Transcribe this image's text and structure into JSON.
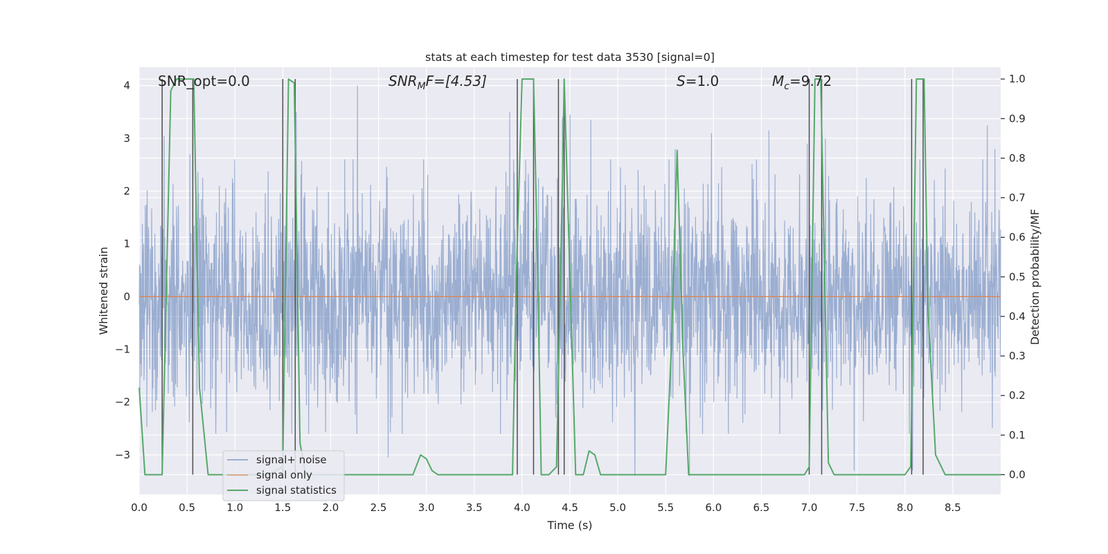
{
  "chart_data": {
    "type": "line",
    "title": "stats at each timestep for test data 3530 [signal=0]",
    "xlabel": "Time (s)",
    "ylabel_left": "Whitened strain",
    "ylabel_right": "Detection probability/MF",
    "xlim": [
      0.0,
      9.0
    ],
    "ylim_left": [
      -3.75,
      4.35
    ],
    "ylim_right": [
      -0.05,
      1.03
    ],
    "x_ticks": [
      0.0,
      0.5,
      1.0,
      1.5,
      2.0,
      2.5,
      3.0,
      3.5,
      4.0,
      4.5,
      5.0,
      5.5,
      6.0,
      6.5,
      7.0,
      7.5,
      8.0,
      8.5
    ],
    "x_tick_labels": [
      "0.0",
      "0.5",
      "1.0",
      "1.5",
      "2.0",
      "2.5",
      "3.0",
      "3.5",
      "4.0",
      "4.5",
      "5.0",
      "5.5",
      "6.0",
      "6.5",
      "7.0",
      "7.5",
      "8.0",
      "8.5"
    ],
    "y_left_ticks": [
      -3,
      -2,
      -1,
      0,
      1,
      2,
      3,
      4
    ],
    "y_left_tick_labels": [
      "−3",
      "−2",
      "−1",
      "0",
      "1",
      "2",
      "3",
      "4"
    ],
    "y_right_ticks": [
      0.0,
      0.1,
      0.2,
      0.3,
      0.4,
      0.5,
      0.6,
      0.7,
      0.8,
      0.9,
      1.0
    ],
    "y_right_tick_labels": [
      "0.0",
      "0.1",
      "0.2",
      "0.3",
      "0.4",
      "0.5",
      "0.6",
      "0.7",
      "0.8",
      "0.9",
      "1.0"
    ],
    "grid": true,
    "legend_position": "lower-left",
    "legend": [
      "signal+ noise",
      "signal only",
      "signal statistics"
    ],
    "annotations": {
      "snr_opt": "SNR_opt=0.0",
      "snr_mf_sym": "SNR",
      "snr_mf_sub": "M",
      "snr_mf_rest": "F=[4.53]",
      "s_sym": "S",
      "s_rest": "=1.0",
      "mc_sym": "M",
      "mc_sub": "c",
      "mc_rest": "=9.72"
    },
    "series": [
      {
        "name": "signal+ noise",
        "axis": "left",
        "color": "#4c72b0",
        "description_stats": {
          "samples_per_second": 300,
          "typical_upper": 1.6,
          "typical_lower": -1.8
        },
        "peaks": [
          {
            "x": 0.26,
            "y": 3.05
          },
          {
            "x": 0.53,
            "y": 2.7
          },
          {
            "x": 1.64,
            "y": 3.5
          },
          {
            "x": 2.28,
            "y": 4.0
          },
          {
            "x": 2.6,
            "y": -3.05
          },
          {
            "x": 3.87,
            "y": 3.5
          },
          {
            "x": 4.42,
            "y": 3.4
          },
          {
            "x": 4.5,
            "y": 3.45
          },
          {
            "x": 4.72,
            "y": 3.35
          },
          {
            "x": 5.18,
            "y": -3.4
          },
          {
            "x": 5.6,
            "y": 2.8
          },
          {
            "x": 5.75,
            "y": -3.4
          },
          {
            "x": 5.98,
            "y": 3.1
          },
          {
            "x": 6.58,
            "y": 3.15
          },
          {
            "x": 6.98,
            "y": 2.9
          },
          {
            "x": 7.17,
            "y": 3.0
          },
          {
            "x": 7.47,
            "y": -3.3
          },
          {
            "x": 8.08,
            "y": -3.3
          },
          {
            "x": 8.86,
            "y": 3.25
          },
          {
            "x": 8.94,
            "y": 2.8
          }
        ]
      },
      {
        "name": "signal only",
        "axis": "left",
        "color": "#dd8452",
        "x": [
          0.0,
          9.0
        ],
        "y": [
          0.0,
          0.0
        ]
      },
      {
        "name": "signal statistics",
        "axis": "right",
        "color": "#55a868",
        "x": [
          0.0,
          0.06,
          0.24,
          0.33,
          0.39,
          0.57,
          0.63,
          0.72,
          1.35,
          1.5,
          1.56,
          1.62,
          1.68,
          1.74,
          2.8,
          2.86,
          2.94,
          3.0,
          3.06,
          3.12,
          3.9,
          3.94,
          4.0,
          4.12,
          4.16,
          4.2,
          4.28,
          4.36,
          4.42,
          4.44,
          4.56,
          4.64,
          4.7,
          4.76,
          4.82,
          5.5,
          5.56,
          5.62,
          5.68,
          5.74,
          6.95,
          7.0,
          7.06,
          7.12,
          7.2,
          7.26,
          7.5,
          8.0,
          8.06,
          8.12,
          8.2,
          8.24,
          8.32,
          8.42,
          8.5,
          9.0
        ],
        "y": [
          0.22,
          0.0,
          0.0,
          0.97,
          1.0,
          1.0,
          0.22,
          0.0,
          0.0,
          0.02,
          1.0,
          0.99,
          0.08,
          0.0,
          0.0,
          0.0,
          0.05,
          0.04,
          0.01,
          0.0,
          0.0,
          0.5,
          1.0,
          1.0,
          0.55,
          0.0,
          0.0,
          0.02,
          0.72,
          1.0,
          0.0,
          0.0,
          0.06,
          0.05,
          0.0,
          0.0,
          0.32,
          0.82,
          0.32,
          0.0,
          0.0,
          0.02,
          1.0,
          1.0,
          0.03,
          0.0,
          0.0,
          0.0,
          0.02,
          1.0,
          1.0,
          0.42,
          0.05,
          0.0,
          0.0,
          0.0
        ]
      }
    ],
    "vertical_markers": [
      0.24,
      0.56,
      1.5,
      1.63,
      3.95,
      4.12,
      4.38,
      4.44,
      7.0,
      7.13,
      8.07,
      8.19
    ]
  }
}
